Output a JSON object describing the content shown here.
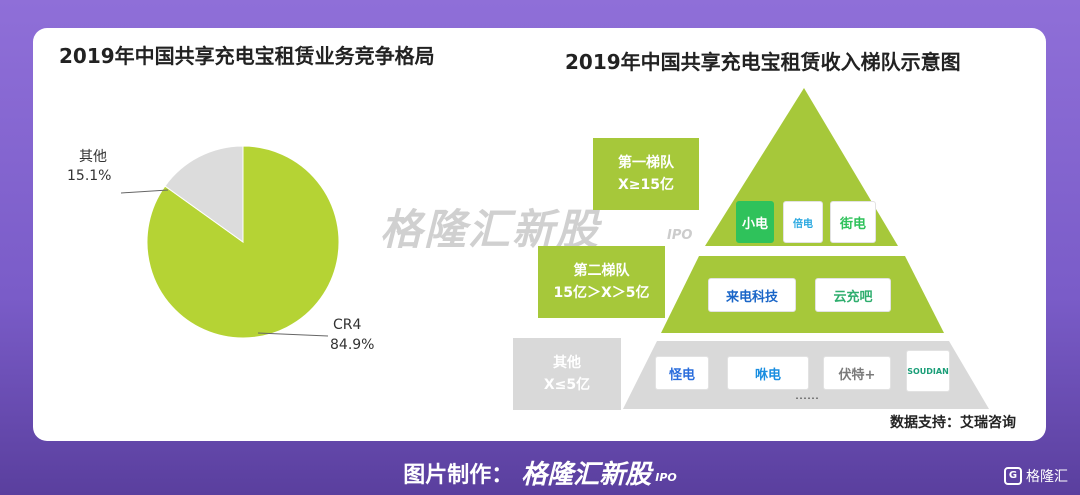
{
  "left_title": "2019年中国共享充电宝租赁业务竞争格局",
  "right_title": "2019年中国共享充电宝租赁收入梯队示意图",
  "watermark": {
    "main": "格隆汇新股",
    "ipo": "IPO"
  },
  "chart_data": [
    {
      "type": "pie",
      "title": "2019年中国共享充电宝租赁业务竞争格局",
      "labels": [
        "CR4",
        "其他"
      ],
      "values": [
        84.9,
        15.1
      ],
      "value_labels": [
        "84.9%",
        "15.1%"
      ],
      "colors": [
        "#b5d334",
        "#dcdcdc"
      ]
    },
    {
      "type": "table",
      "title": "2019年中国共享充电宝租赁收入梯队示意图",
      "tiers": [
        {
          "line1": "第一梯队",
          "line2": "X≥15亿",
          "brands": [
            "小电",
            "倍电",
            "街电"
          ],
          "color": "#a6c83a"
        },
        {
          "line1": "第二梯队",
          "line2": "15亿＞X＞5亿",
          "brands": [
            "来电科技",
            "云充吧"
          ],
          "color": "#a6c83a"
        },
        {
          "line1": "其他",
          "line2": "X≤5亿",
          "brands": [
            "怪电",
            "咻电",
            "伏特+",
            "SOUDIAN"
          ],
          "color": "#d9d9d9"
        }
      ],
      "ellipsis": "……"
    }
  ],
  "source": "数据支持：艾瑞咨询",
  "footer": {
    "label": "图片制作：",
    "brand": "格隆汇新股",
    "ipo": "IPO"
  },
  "corner_brand": "格隆汇",
  "colors": {
    "accent_green": "#a6c83a",
    "pie_green": "#b5d334",
    "grey": "#dcdcdc",
    "purple_bg": "#8f6fd8"
  }
}
